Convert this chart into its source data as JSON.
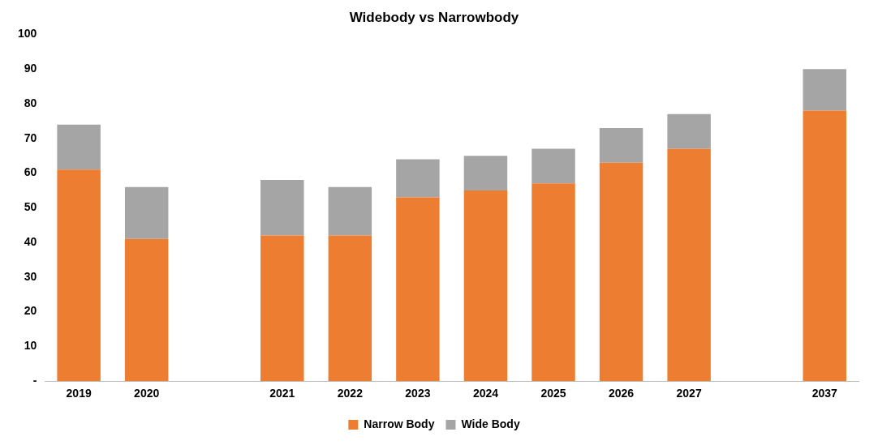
{
  "chart_data": {
    "type": "bar",
    "title": "Widebody vs Narrowbody",
    "stacked": true,
    "categories": [
      "2019",
      "2020",
      null,
      "2021",
      "2022",
      "2023",
      "2024",
      "2025",
      "2026",
      "2027",
      null,
      "2037"
    ],
    "series": [
      {
        "name": "Narrow Body",
        "color": "#ed7d31",
        "values": [
          61,
          41,
          null,
          42,
          42,
          53,
          55,
          57,
          63,
          67,
          null,
          78
        ]
      },
      {
        "name": "Wide Body",
        "color": "#a5a5a5",
        "values": [
          13,
          15,
          null,
          16,
          14,
          11,
          10,
          10,
          10,
          10,
          null,
          12
        ]
      }
    ],
    "ylim": [
      0,
      100
    ],
    "yticks": [
      {
        "value": 0,
        "label": "-"
      },
      10,
      20,
      30,
      40,
      50,
      60,
      70,
      80,
      90,
      100
    ],
    "grid": false,
    "legend": "bottom"
  }
}
